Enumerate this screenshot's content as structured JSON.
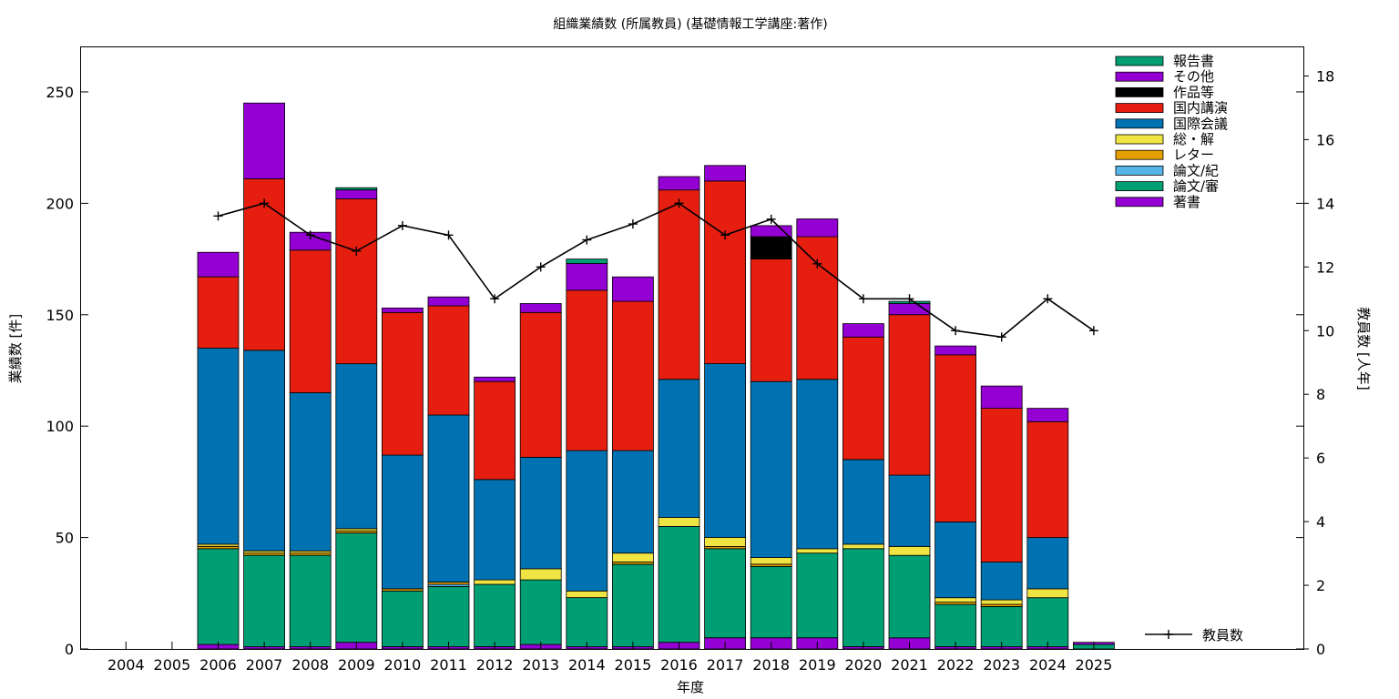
{
  "chart_data": {
    "type": "bar",
    "title": "組織業績数 (所属教員) (基礎情報工学講座:著作)",
    "xlabel": "年度",
    "ylabel": "業績数 [件]",
    "y2label": "教員数 [人年]",
    "categories": [
      "2004",
      "2005",
      "2006",
      "2007",
      "2008",
      "2009",
      "2010",
      "2011",
      "2012",
      "2013",
      "2014",
      "2015",
      "2016",
      "2017",
      "2018",
      "2019",
      "2020",
      "2021",
      "2022",
      "2023",
      "2024",
      "2025"
    ],
    "ylim": [
      0,
      270
    ],
    "yticks": [
      "0",
      "50",
      "100",
      "150",
      "200",
      "250"
    ],
    "y2lim": [
      0,
      18.9
    ],
    "y2ticks": [
      "0",
      "2",
      "4",
      "6",
      "8",
      "10",
      "12",
      "14",
      "16",
      "18"
    ],
    "stacked": true,
    "series": [
      {
        "name": "著書",
        "color": "#9400d3",
        "values": [
          0,
          0,
          2,
          1,
          1,
          3,
          1,
          1,
          1,
          2,
          1,
          1,
          3,
          5,
          5,
          5,
          1,
          5,
          1,
          1,
          1,
          0
        ]
      },
      {
        "name": "論文/審",
        "color": "#009e73",
        "values": [
          0,
          0,
          43,
          41,
          41,
          49,
          25,
          27,
          28,
          29,
          22,
          37,
          52,
          40,
          32,
          38,
          44,
          37,
          19,
          18,
          22,
          2
        ]
      },
      {
        "name": "論文/紀",
        "color": "#56b4e9",
        "values": [
          0,
          0,
          0,
          0,
          0,
          0,
          0,
          1,
          0,
          0,
          0,
          0,
          0,
          0,
          0,
          0,
          0,
          0,
          0,
          0,
          0,
          0
        ]
      },
      {
        "name": "レター",
        "color": "#e69f00",
        "values": [
          0,
          0,
          1,
          1,
          1,
          1,
          1,
          1,
          0,
          0,
          0,
          1,
          0,
          1,
          1,
          0,
          0,
          0,
          1,
          1,
          0,
          0
        ]
      },
      {
        "name": "総・解",
        "color": "#f0e442",
        "values": [
          0,
          0,
          1,
          1,
          1,
          1,
          0,
          0,
          2,
          5,
          3,
          4,
          4,
          4,
          3,
          2,
          2,
          4,
          2,
          2,
          4,
          0
        ]
      },
      {
        "name": "国際会議",
        "color": "#0072b2",
        "values": [
          0,
          0,
          88,
          90,
          71,
          74,
          60,
          75,
          45,
          50,
          63,
          46,
          62,
          78,
          79,
          76,
          38,
          32,
          34,
          17,
          23,
          0
        ]
      },
      {
        "name": "国内講演",
        "color": "#e51e10",
        "values": [
          0,
          0,
          32,
          77,
          64,
          74,
          64,
          49,
          44,
          65,
          72,
          67,
          85,
          82,
          55,
          64,
          55,
          72,
          75,
          69,
          52,
          0
        ]
      },
      {
        "name": "作品等",
        "color": "#000000",
        "values": [
          0,
          0,
          0,
          0,
          0,
          0,
          0,
          0,
          0,
          0,
          0,
          0,
          0,
          0,
          10,
          0,
          0,
          0,
          0,
          0,
          0,
          0
        ]
      },
      {
        "name": "その他",
        "color": "#9400d3",
        "values": [
          0,
          0,
          11,
          34,
          8,
          4,
          2,
          4,
          2,
          4,
          12,
          11,
          6,
          7,
          5,
          8,
          6,
          5,
          4,
          10,
          6,
          1
        ]
      },
      {
        "name": "報告書",
        "color": "#009e73",
        "values": [
          0,
          0,
          0,
          0,
          0,
          1,
          0,
          0,
          0,
          0,
          2,
          0,
          0,
          0,
          0,
          0,
          0,
          1,
          0,
          0,
          0,
          0
        ]
      }
    ],
    "line": {
      "name": "教員数",
      "color": "#000000",
      "axis": "right",
      "values": [
        null,
        null,
        13.6,
        14,
        13,
        12.5,
        13.3,
        13,
        11,
        12,
        12.85,
        13.35,
        14,
        13,
        13.5,
        12.1,
        11,
        11,
        10,
        9.8,
        11,
        10
      ]
    },
    "legend_position": "top-right",
    "line_legend_position": "bottom-right",
    "grid": false
  }
}
